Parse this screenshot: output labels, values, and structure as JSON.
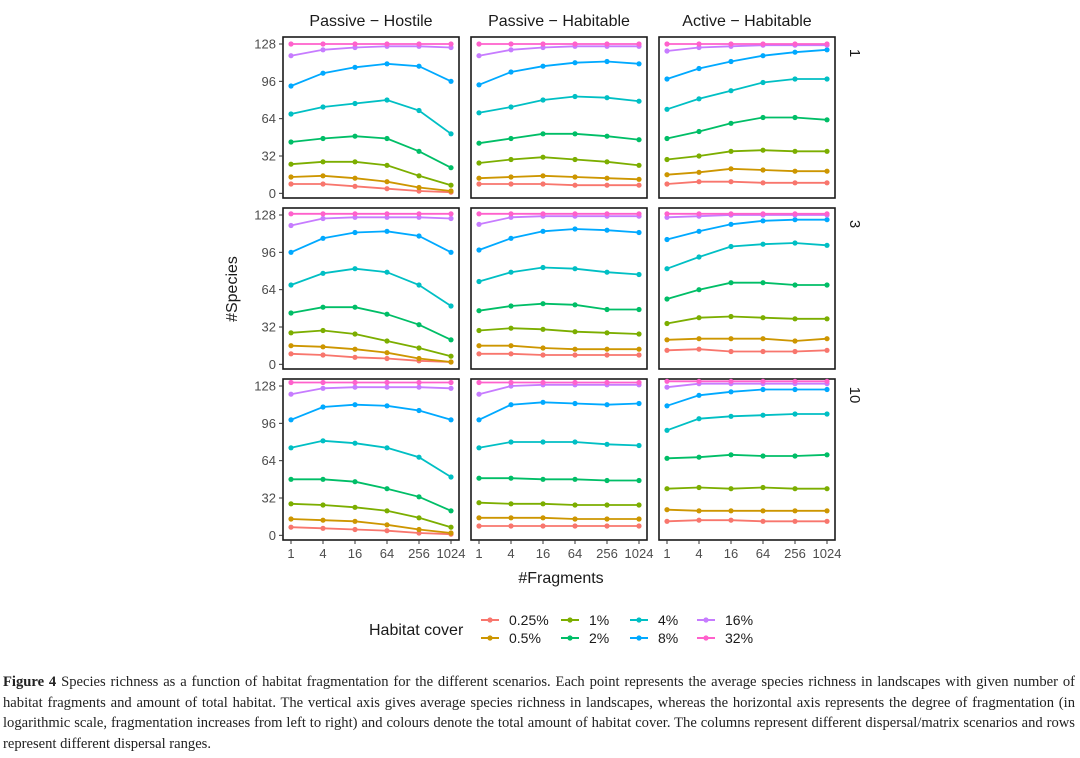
{
  "chart_data": {
    "type": "line",
    "facet_columns": [
      "Passive − Hostile",
      "Passive − Habitable",
      "Active − Habitable"
    ],
    "facet_rows": [
      "1",
      "3",
      "10"
    ],
    "xlabel": "#Fragments",
    "ylabel": "#Species",
    "x": [
      1,
      4,
      16,
      64,
      256,
      1024
    ],
    "x_tick_labels": [
      "1",
      "4",
      "16",
      "64",
      "256",
      "1024"
    ],
    "x_scale": "log2",
    "y_ticks": [
      0,
      32,
      64,
      96,
      128
    ],
    "ylim": [
      -4,
      134
    ],
    "legend": {
      "title": "Habitat cover",
      "position": "bottom",
      "entries": [
        "0.25%",
        "0.5%",
        "1%",
        "2%",
        "4%",
        "8%",
        "16%",
        "32%"
      ]
    },
    "series_colors": [
      "#F8766D",
      "#CD9600",
      "#7CAE00",
      "#00BE67",
      "#00BFC4",
      "#00A9FF",
      "#C77CFF",
      "#FF61CC"
    ],
    "panels": [
      {
        "row": 0,
        "col": 0,
        "series": [
          {
            "name": "0.25%",
            "values": [
              8,
              8,
              6,
              4,
              2,
              1
            ]
          },
          {
            "name": "0.5%",
            "values": [
              14,
              15,
              13,
              10,
              5,
              2
            ]
          },
          {
            "name": "1%",
            "values": [
              25,
              27,
              27,
              24,
              15,
              7
            ]
          },
          {
            "name": "2%",
            "values": [
              44,
              47,
              49,
              47,
              36,
              22
            ]
          },
          {
            "name": "4%",
            "values": [
              68,
              74,
              77,
              80,
              71,
              51
            ]
          },
          {
            "name": "8%",
            "values": [
              92,
              103,
              108,
              111,
              109,
              96
            ]
          },
          {
            "name": "16%",
            "values": [
              118,
              123,
              125,
              126,
              126,
              125
            ]
          },
          {
            "name": "32%",
            "values": [
              128,
              128,
              128,
              128,
              128,
              128
            ]
          }
        ]
      },
      {
        "row": 0,
        "col": 1,
        "series": [
          {
            "name": "0.25%",
            "values": [
              8,
              8,
              8,
              7,
              7,
              7
            ]
          },
          {
            "name": "0.5%",
            "values": [
              13,
              14,
              15,
              14,
              13,
              12
            ]
          },
          {
            "name": "1%",
            "values": [
              26,
              29,
              31,
              29,
              27,
              24
            ]
          },
          {
            "name": "2%",
            "values": [
              43,
              47,
              51,
              51,
              49,
              46
            ]
          },
          {
            "name": "4%",
            "values": [
              69,
              74,
              80,
              83,
              82,
              79
            ]
          },
          {
            "name": "8%",
            "values": [
              93,
              104,
              109,
              112,
              113,
              111
            ]
          },
          {
            "name": "16%",
            "values": [
              118,
              123,
              125,
              126,
              126,
              126
            ]
          },
          {
            "name": "32%",
            "values": [
              128,
              128,
              128,
              128,
              128,
              128
            ]
          }
        ]
      },
      {
        "row": 0,
        "col": 2,
        "series": [
          {
            "name": "0.25%",
            "values": [
              8,
              10,
              10,
              9,
              9,
              9
            ]
          },
          {
            "name": "0.5%",
            "values": [
              16,
              18,
              21,
              20,
              19,
              19
            ]
          },
          {
            "name": "1%",
            "values": [
              29,
              32,
              36,
              37,
              36,
              36
            ]
          },
          {
            "name": "2%",
            "values": [
              47,
              53,
              60,
              65,
              65,
              63
            ]
          },
          {
            "name": "4%",
            "values": [
              72,
              81,
              88,
              95,
              98,
              98
            ]
          },
          {
            "name": "8%",
            "values": [
              98,
              107,
              113,
              118,
              121,
              123
            ]
          },
          {
            "name": "16%",
            "values": [
              122,
              125,
              126,
              127,
              127,
              127
            ]
          },
          {
            "name": "32%",
            "values": [
              128,
              128,
              128,
              128,
              128,
              128
            ]
          }
        ]
      },
      {
        "row": 1,
        "col": 0,
        "series": [
          {
            "name": "0.25%",
            "values": [
              9,
              8,
              6,
              5,
              3,
              2
            ]
          },
          {
            "name": "0.5%",
            "values": [
              16,
              15,
              13,
              10,
              5,
              2
            ]
          },
          {
            "name": "1%",
            "values": [
              27,
              29,
              26,
              20,
              14,
              7
            ]
          },
          {
            "name": "2%",
            "values": [
              44,
              49,
              49,
              43,
              34,
              21
            ]
          },
          {
            "name": "4%",
            "values": [
              68,
              78,
              82,
              79,
              68,
              50
            ]
          },
          {
            "name": "8%",
            "values": [
              96,
              108,
              113,
              114,
              110,
              96
            ]
          },
          {
            "name": "16%",
            "values": [
              119,
              125,
              126,
              126,
              126,
              125
            ]
          },
          {
            "name": "32%",
            "values": [
              129,
              129,
              129,
              129,
              129,
              129
            ]
          }
        ]
      },
      {
        "row": 1,
        "col": 1,
        "series": [
          {
            "name": "0.25%",
            "values": [
              9,
              9,
              8,
              8,
              8,
              8
            ]
          },
          {
            "name": "0.5%",
            "values": [
              16,
              16,
              14,
              13,
              13,
              13
            ]
          },
          {
            "name": "1%",
            "values": [
              29,
              31,
              30,
              28,
              27,
              26
            ]
          },
          {
            "name": "2%",
            "values": [
              46,
              50,
              52,
              51,
              47,
              47
            ]
          },
          {
            "name": "4%",
            "values": [
              71,
              79,
              83,
              82,
              79,
              77
            ]
          },
          {
            "name": "8%",
            "values": [
              98,
              108,
              114,
              116,
              115,
              113
            ]
          },
          {
            "name": "16%",
            "values": [
              120,
              126,
              127,
              127,
              127,
              127
            ]
          },
          {
            "name": "32%",
            "values": [
              129,
              129,
              129,
              129,
              129,
              129
            ]
          }
        ]
      },
      {
        "row": 1,
        "col": 2,
        "series": [
          {
            "name": "0.25%",
            "values": [
              12,
              13,
              11,
              11,
              11,
              12
            ]
          },
          {
            "name": "0.5%",
            "values": [
              21,
              22,
              22,
              22,
              20,
              22
            ]
          },
          {
            "name": "1%",
            "values": [
              35,
              40,
              41,
              40,
              39,
              39
            ]
          },
          {
            "name": "2%",
            "values": [
              56,
              64,
              70,
              70,
              68,
              68
            ]
          },
          {
            "name": "4%",
            "values": [
              82,
              92,
              101,
              103,
              104,
              102
            ]
          },
          {
            "name": "8%",
            "values": [
              107,
              114,
              120,
              123,
              124,
              124
            ]
          },
          {
            "name": "16%",
            "values": [
              126,
              127,
              128,
              128,
              128,
              128
            ]
          },
          {
            "name": "32%",
            "values": [
              129,
              129,
              129,
              129,
              129,
              129
            ]
          }
        ]
      },
      {
        "row": 2,
        "col": 0,
        "series": [
          {
            "name": "0.25%",
            "values": [
              7,
              6,
              5,
              4,
              2,
              1
            ]
          },
          {
            "name": "0.5%",
            "values": [
              14,
              13,
              12,
              9,
              5,
              2
            ]
          },
          {
            "name": "1%",
            "values": [
              27,
              26,
              24,
              21,
              15,
              7
            ]
          },
          {
            "name": "2%",
            "values": [
              48,
              48,
              46,
              40,
              33,
              21
            ]
          },
          {
            "name": "4%",
            "values": [
              75,
              81,
              79,
              75,
              67,
              50
            ]
          },
          {
            "name": "8%",
            "values": [
              99,
              110,
              112,
              111,
              107,
              99
            ]
          },
          {
            "name": "16%",
            "values": [
              121,
              126,
              127,
              127,
              127,
              126
            ]
          },
          {
            "name": "32%",
            "values": [
              131,
              131,
              131,
              131,
              131,
              131
            ]
          }
        ]
      },
      {
        "row": 2,
        "col": 1,
        "series": [
          {
            "name": "0.25%",
            "values": [
              8,
              8,
              8,
              8,
              8,
              8
            ]
          },
          {
            "name": "0.5%",
            "values": [
              15,
              15,
              15,
              14,
              14,
              14
            ]
          },
          {
            "name": "1%",
            "values": [
              28,
              27,
              27,
              26,
              26,
              26
            ]
          },
          {
            "name": "2%",
            "values": [
              49,
              49,
              48,
              48,
              47,
              47
            ]
          },
          {
            "name": "4%",
            "values": [
              75,
              80,
              80,
              80,
              78,
              77
            ]
          },
          {
            "name": "8%",
            "values": [
              99,
              112,
              114,
              113,
              112,
              113
            ]
          },
          {
            "name": "16%",
            "values": [
              121,
              128,
              129,
              129,
              129,
              129
            ]
          },
          {
            "name": "32%",
            "values": [
              131,
              131,
              131,
              131,
              131,
              131
            ]
          }
        ]
      },
      {
        "row": 2,
        "col": 2,
        "series": [
          {
            "name": "0.25%",
            "values": [
              12,
              13,
              13,
              12,
              12,
              12
            ]
          },
          {
            "name": "0.5%",
            "values": [
              22,
              21,
              21,
              21,
              21,
              21
            ]
          },
          {
            "name": "1%",
            "values": [
              40,
              41,
              40,
              41,
              40,
              40
            ]
          },
          {
            "name": "2%",
            "values": [
              66,
              67,
              69,
              68,
              68,
              69
            ]
          },
          {
            "name": "4%",
            "values": [
              90,
              100,
              102,
              103,
              104,
              104
            ]
          },
          {
            "name": "8%",
            "values": [
              111,
              120,
              123,
              125,
              125,
              125
            ]
          },
          {
            "name": "16%",
            "values": [
              127,
              130,
              130,
              130,
              130,
              130
            ]
          },
          {
            "name": "32%",
            "values": [
              132,
              132,
              132,
              132,
              132,
              132
            ]
          }
        ]
      }
    ]
  },
  "caption": {
    "label": "Figure 4",
    "text": "Species richness as a function of habitat fragmentation for the different scenarios. Each point represents the average species richness in landscapes with given number of habitat fragments and amount of total habitat. The vertical axis gives average species richness in landscapes, whereas the horizontal axis represents the degree of fragmentation (in logarithmic scale, fragmentation increases from left to right) and colours denote the total amount of habitat cover. The columns represent different dispersal/matrix scenarios and rows represent different dispersal ranges."
  }
}
